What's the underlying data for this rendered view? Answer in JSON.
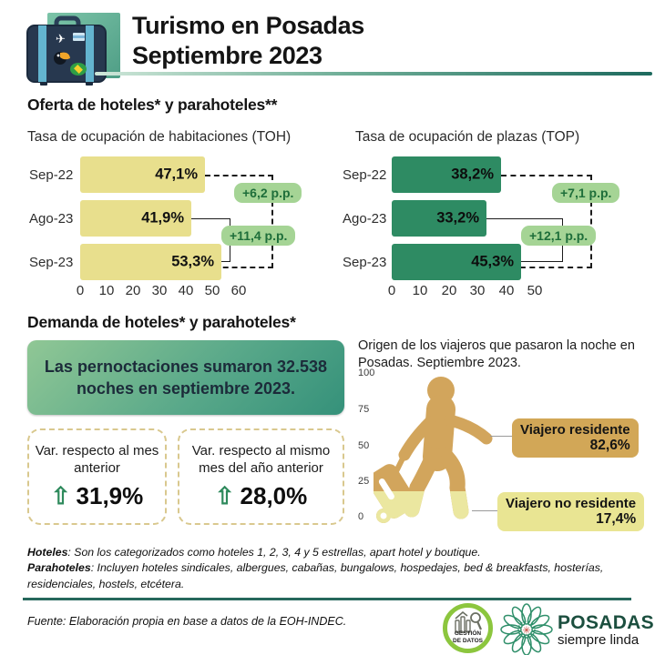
{
  "header": {
    "title_line1": "Turismo en Posadas",
    "title_line2": "Septiembre 2023"
  },
  "sections": {
    "oferta_heading": "Oferta de hoteles* y parahoteles**",
    "demanda_heading": "Demanda de hoteles* y parahoteles*"
  },
  "chart_data": [
    {
      "type": "bar",
      "orientation": "horizontal",
      "title": "Tasa de ocupación de habitaciones (TOH)",
      "categories": [
        "Sep-22",
        "Ago-23",
        "Sep-23"
      ],
      "values": [
        47.1,
        41.9,
        53.3
      ],
      "value_labels": [
        "47,1%",
        "41,9%",
        "53,3%"
      ],
      "xticks": [
        "0",
        "10",
        "20",
        "30",
        "40",
        "50",
        "60"
      ],
      "xlim": [
        0,
        60
      ],
      "grid": false,
      "bar_color": "#e8df8d",
      "annotations": [
        {
          "label": "+6,2 p.p.",
          "from": "Sep-22",
          "to": "Sep-23",
          "style": "dashed"
        },
        {
          "label": "+11,4 p.p.",
          "from": "Ago-23",
          "to": "Sep-23",
          "style": "solid"
        }
      ]
    },
    {
      "type": "bar",
      "orientation": "horizontal",
      "title": "Tasa de ocupación de plazas (TOP)",
      "categories": [
        "Sep-22",
        "Ago-23",
        "Sep-23"
      ],
      "values": [
        38.2,
        33.2,
        45.3
      ],
      "value_labels": [
        "38,2%",
        "33,2%",
        "45,3%"
      ],
      "xticks": [
        "0",
        "10",
        "20",
        "30",
        "40",
        "50"
      ],
      "xlim": [
        0,
        50
      ],
      "grid": false,
      "bar_color": "#2e8b63",
      "annotations": [
        {
          "label": "+7,1 p.p.",
          "from": "Sep-22",
          "to": "Sep-23",
          "style": "dashed"
        },
        {
          "label": "+12,1 p.p.",
          "from": "Ago-23",
          "to": "Sep-23",
          "style": "solid"
        }
      ]
    },
    {
      "type": "pictogram",
      "title": "Origen de los viajeros que pasaron la noche en Posadas. Septiembre 2023.",
      "yticks": [
        "100",
        "75",
        "50",
        "25",
        "0"
      ],
      "ylim": [
        0,
        100
      ],
      "categories": [
        "Viajero residente",
        "Viajero no residente"
      ],
      "values": [
        82.6,
        17.4
      ],
      "value_labels": [
        "82,6%",
        "17,4%"
      ],
      "colors": [
        "#d2a757",
        "#e9e593"
      ]
    }
  ],
  "highlight": {
    "text": "Las pernoctaciones sumaron 32.538 noches en septiembre 2023."
  },
  "kpis": [
    {
      "label": "Var. respecto al mes anterior",
      "arrow": "⇧",
      "value": "31,9%"
    },
    {
      "label": "Var. respecto al mismo mes del año anterior",
      "arrow": "⇧",
      "value": "28,0%"
    }
  ],
  "footnotes": {
    "hoteles_term": "Hoteles",
    "hoteles_def": ": Son los categorizados como hoteles 1, 2, 3, 4 y 5 estrellas, apart hotel y boutique.",
    "parahoteles_term": "Parahoteles",
    "parahoteles_def": ": Incluyen hoteles sindicales, albergues, cabañas, bungalows, hospedajes, bed & breakfasts, hosterías, residenciales, hostels, etcétera."
  },
  "source": "Fuente: Elaboración propia en base a datos de la EOH-INDEC.",
  "logos": {
    "gestion": {
      "line1": "GESTIÓN",
      "line2": "DE DATOS"
    },
    "posadas": {
      "name": "POSADAS",
      "tagline": "siempre linda"
    }
  },
  "colors": {
    "accent_teal": "#1d6a5e",
    "bar_yellow": "#e8df8d",
    "bar_green": "#2e8b63",
    "annotation_bg": "#a5d495",
    "annotation_text": "#1e6e3a",
    "highlight_from": "#90c795",
    "highlight_to": "#35917a",
    "kpi_border": "#d9c88e",
    "resident_gold": "#d2a757",
    "nonresident_yellow": "#e9e593"
  }
}
